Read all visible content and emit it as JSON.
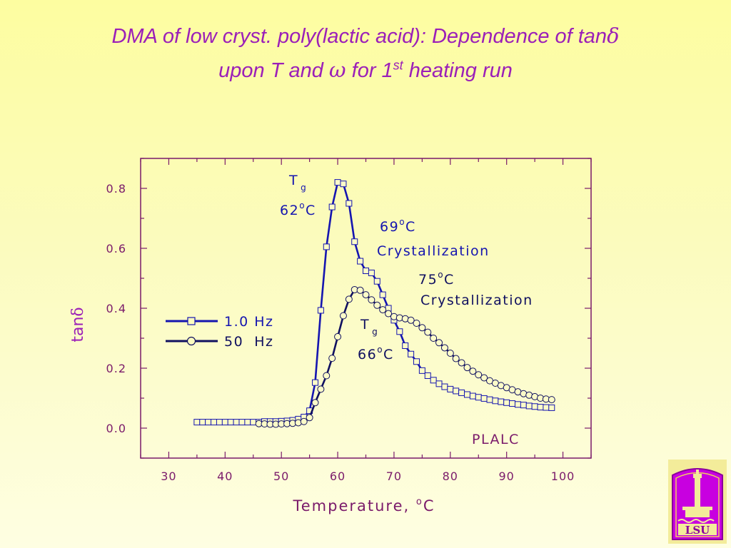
{
  "title": {
    "line1_text": "DMA of low cryst. poly(lactic acid): Dependence of tan",
    "line1_symbol": "δ",
    "line2_a": "upon T and ",
    "line2_symbol": "ω",
    "line2_b": " for 1",
    "line2_sup": "st",
    "line2_c": " heating run"
  },
  "colors": {
    "title": "#9b1fb8",
    "axis_text": "#7a1a6a",
    "series_1hz": "#1515b0",
    "series_50hz": "#101060",
    "background": "#fcfcb4"
  },
  "chart_data": {
    "type": "line",
    "xlabel": "Temperature, °C",
    "xlabel_parts": {
      "text": "Temperature, ",
      "sup": "o",
      "unit": "C"
    },
    "ylabel": "tanδ",
    "ylabel_parts": {
      "text": "tan",
      "symbol": "δ"
    },
    "xlim": [
      25,
      105
    ],
    "ylim": [
      -0.1,
      0.9
    ],
    "xticks": [
      30,
      40,
      50,
      60,
      70,
      80,
      90,
      100
    ],
    "yticks": [
      0.0,
      0.2,
      0.4,
      0.6,
      0.8
    ],
    "ytick_labels": [
      "0.0",
      "0.2",
      "0.4",
      "0.6",
      "0.8"
    ],
    "legend_position": "middle-left",
    "series": [
      {
        "name": "1.0 Hz",
        "marker": "square",
        "x": [
          35,
          36,
          37,
          38,
          39,
          40,
          41,
          42,
          43,
          44,
          45,
          46,
          47,
          48,
          49,
          50,
          51,
          52,
          53,
          54,
          55,
          56,
          57,
          58,
          59,
          60,
          61,
          62,
          63,
          64,
          65,
          66,
          67,
          68,
          69,
          70,
          71,
          72,
          73,
          74,
          75,
          76,
          77,
          78,
          79,
          80,
          81,
          82,
          83,
          84,
          85,
          86,
          87,
          88,
          89,
          90,
          91,
          92,
          93,
          94,
          95,
          96,
          97,
          98
        ],
        "y": [
          0.02,
          0.02,
          0.02,
          0.02,
          0.02,
          0.02,
          0.02,
          0.02,
          0.02,
          0.02,
          0.02,
          0.02,
          0.022,
          0.022,
          0.022,
          0.023,
          0.024,
          0.026,
          0.03,
          0.037,
          0.058,
          0.152,
          0.393,
          0.605,
          0.738,
          0.82,
          0.815,
          0.75,
          0.622,
          0.557,
          0.525,
          0.518,
          0.49,
          0.445,
          0.4,
          0.36,
          0.322,
          0.275,
          0.247,
          0.222,
          0.192,
          0.175,
          0.16,
          0.148,
          0.138,
          0.13,
          0.124,
          0.118,
          0.112,
          0.107,
          0.103,
          0.099,
          0.095,
          0.091,
          0.088,
          0.085,
          0.082,
          0.079,
          0.077,
          0.074,
          0.072,
          0.07,
          0.069,
          0.068
        ]
      },
      {
        "name": "50  Hz",
        "marker": "circle",
        "x": [
          46,
          47,
          48,
          49,
          50,
          51,
          52,
          53,
          54,
          55,
          56,
          57,
          58,
          59,
          60,
          61,
          62,
          63,
          64,
          65,
          66,
          67,
          68,
          69,
          70,
          71,
          72,
          73,
          74,
          75,
          76,
          77,
          78,
          79,
          80,
          81,
          82,
          83,
          84,
          85,
          86,
          87,
          88,
          89,
          90,
          91,
          92,
          93,
          94,
          95,
          96,
          97,
          98
        ],
        "y": [
          0.015,
          0.014,
          0.013,
          0.013,
          0.014,
          0.015,
          0.016,
          0.018,
          0.022,
          0.035,
          0.085,
          0.13,
          0.175,
          0.233,
          0.305,
          0.375,
          0.43,
          0.462,
          0.46,
          0.445,
          0.428,
          0.41,
          0.395,
          0.382,
          0.372,
          0.368,
          0.365,
          0.36,
          0.35,
          0.335,
          0.32,
          0.3,
          0.285,
          0.268,
          0.25,
          0.232,
          0.218,
          0.202,
          0.19,
          0.178,
          0.168,
          0.158,
          0.15,
          0.142,
          0.135,
          0.128,
          0.121,
          0.115,
          0.11,
          0.105,
          0.1,
          0.097,
          0.095
        ]
      }
    ],
    "legend": [
      {
        "label": "1.0 Hz",
        "marker": "square"
      },
      {
        "label": "50  Hz",
        "marker": "circle"
      }
    ],
    "annotations": {
      "tg_1hz": {
        "symbol": "T",
        "sub": "g",
        "value": "62",
        "sup": "o",
        "unit": "C"
      },
      "cryst_1hz": {
        "value": "69",
        "sup": "o",
        "unit": "C",
        "label": "Crystallization"
      },
      "cryst_50hz": {
        "value": "75",
        "sup": "o",
        "unit": "C",
        "label": "Crystallization"
      },
      "tg_50hz": {
        "symbol": "T",
        "sub": "g",
        "value": "66",
        "sup": "o",
        "unit": "C"
      },
      "sample": "PLALC"
    }
  },
  "logo": {
    "text": "LSU",
    "icon": "university-tower-emblem"
  }
}
